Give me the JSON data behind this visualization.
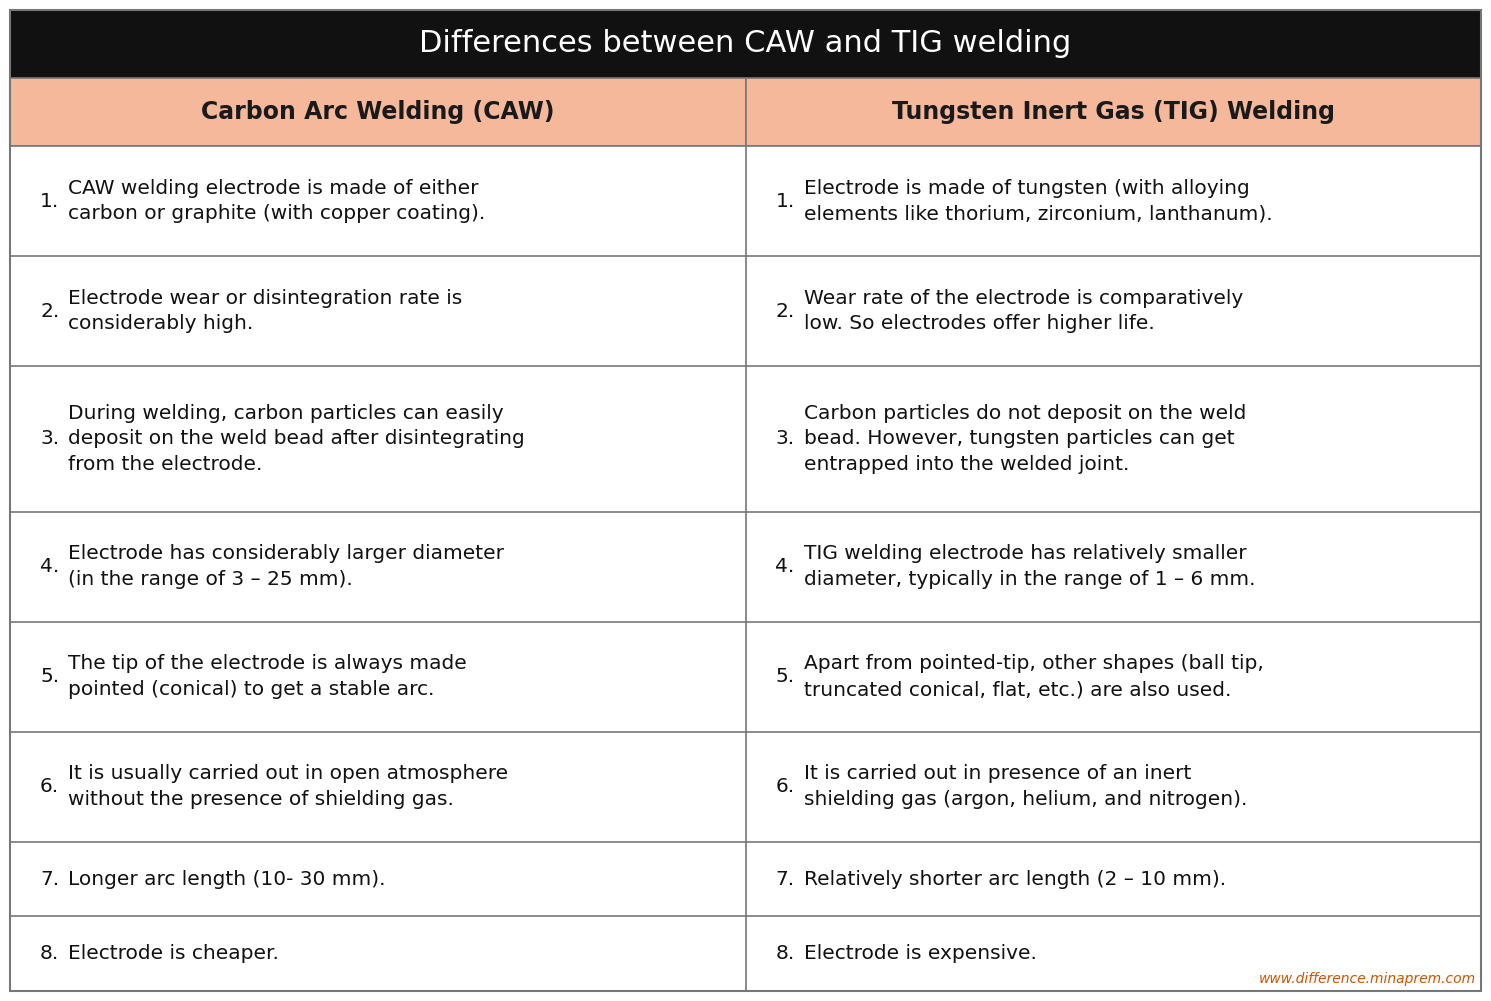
{
  "title": "Differences between CAW and TIG welding",
  "title_bg": "#111111",
  "title_color": "#ffffff",
  "title_fontsize": 22,
  "header_bg": "#f5b89b",
  "header_color": "#1a1a1a",
  "header_fontsize": 17,
  "body_bg": "#ffffff",
  "body_color": "#111111",
  "body_fontsize": 14.5,
  "border_color": "#777777",
  "col1_header": "Carbon Arc Welding (CAW)",
  "col2_header": "Tungsten Inert Gas (TIG) Welding",
  "col1_items": [
    "CAW welding electrode is made of either\ncarbon or graphite (with copper coating).",
    "Electrode wear or disintegration rate is\nconsiderably high.",
    "During welding, carbon particles can easily\ndeposit on the weld bead after disintegrating\nfrom the electrode.",
    "Electrode has considerably larger diameter\n(in the range of 3 – 25 mm).",
    "The tip of the electrode is always made\npointed (conical) to get a stable arc.",
    "It is usually carried out in open atmosphere\nwithout the presence of shielding gas.",
    "Longer arc length (10- 30 mm).",
    "Electrode is cheaper."
  ],
  "col2_items": [
    "Electrode is made of tungsten (with alloying\nelements like thorium, zirconium, lanthanum).",
    "Wear rate of the electrode is comparatively\nlow. So electrodes offer higher life.",
    "Carbon particles do not deposit on the weld\nbead. However, tungsten particles can get\nentrapped into the welded joint.",
    "TIG welding electrode has relatively smaller\ndiameter, typically in the range of 1 – 6 mm.",
    "Apart from pointed-tip, other shapes (ball tip,\ntruncated conical, flat, etc.) are also used.",
    "It is carried out in presence of an inert\nshielding gas (argon, helium, and nitrogen).",
    "Relatively shorter arc length (2 – 10 mm).",
    "Electrode is expensive."
  ],
  "watermark": "www.difference.minaprem.com",
  "watermark_color": "#cc5500",
  "row_line_counts": [
    2,
    2,
    3,
    2,
    2,
    2,
    1,
    1
  ]
}
